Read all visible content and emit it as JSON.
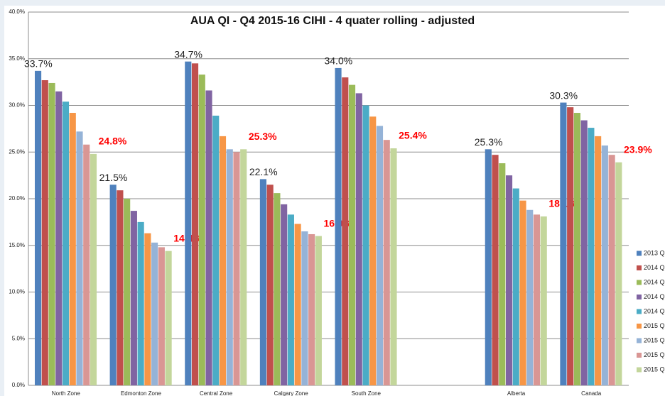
{
  "chart_data": {
    "type": "bar",
    "title": "AUA QI - Q4 2015-16 CIHI - 4 quater rolling - adjusted",
    "categories": [
      "North Zone",
      "Edmonton Zone",
      "Central Zone",
      "Calgary Zone",
      "South Zone",
      null,
      "Alberta",
      "Canada"
    ],
    "ylim": [
      0,
      40
    ],
    "yticks": [
      {
        "value": 0,
        "label": "0.0%"
      },
      {
        "value": 5,
        "label": "5.0%"
      },
      {
        "value": 10,
        "label": "10.0%"
      },
      {
        "value": 15,
        "label": "15.0%"
      },
      {
        "value": 20,
        "label": "20.0%"
      },
      {
        "value": 25,
        "label": "25.0%"
      },
      {
        "value": 30,
        "label": "30.0%"
      },
      {
        "value": 35,
        "label": "35.0%"
      },
      {
        "value": 40,
        "label": "40.0%"
      }
    ],
    "grid": true,
    "series": [
      {
        "name": "2013 Q",
        "color": "#4f81bd",
        "values": [
          33.7,
          21.5,
          34.7,
          22.1,
          34.0,
          null,
          25.3,
          30.3
        ],
        "value_labels": [
          "33.7%",
          "21.5%",
          "34.7%",
          "22.1%",
          "34.0%",
          null,
          "25.3%",
          "30.3%"
        ]
      },
      {
        "name": "2014 Q",
        "color": "#c0504d",
        "values": [
          32.7,
          20.9,
          34.5,
          21.5,
          33.0,
          null,
          24.7,
          29.8
        ]
      },
      {
        "name": "2014 Q",
        "color": "#9bbb59",
        "values": [
          32.4,
          20.0,
          33.3,
          20.6,
          32.2,
          null,
          23.8,
          29.2
        ]
      },
      {
        "name": "2014 Q",
        "color": "#8064a2",
        "values": [
          31.5,
          18.7,
          31.6,
          19.4,
          31.3,
          null,
          22.5,
          28.4
        ]
      },
      {
        "name": "2014 Q",
        "color": "#4bacc6",
        "values": [
          30.4,
          17.5,
          28.9,
          18.3,
          30.0,
          null,
          21.1,
          27.6
        ]
      },
      {
        "name": "2015 Q",
        "color": "#f79646",
        "values": [
          29.2,
          16.3,
          26.7,
          17.3,
          28.8,
          null,
          19.8,
          26.7
        ]
      },
      {
        "name": "2015 Q",
        "color": "#95b3d7",
        "values": [
          27.2,
          15.3,
          25.3,
          16.5,
          27.8,
          null,
          18.8,
          25.7
        ]
      },
      {
        "name": "2015 Q",
        "color": "#d99694",
        "values": [
          25.8,
          14.8,
          25.0,
          16.2,
          26.3,
          null,
          18.3,
          24.7
        ]
      },
      {
        "name": "2015 Q",
        "color": "#c3d69b",
        "values": [
          24.8,
          14.4,
          25.3,
          16.0,
          25.4,
          null,
          18.1,
          23.9
        ],
        "value_labels": [
          "24.8%",
          "14.4%",
          "25.3%",
          "16.0%",
          "25.4%",
          null,
          "18.1%",
          "23.9%"
        ]
      }
    ]
  }
}
